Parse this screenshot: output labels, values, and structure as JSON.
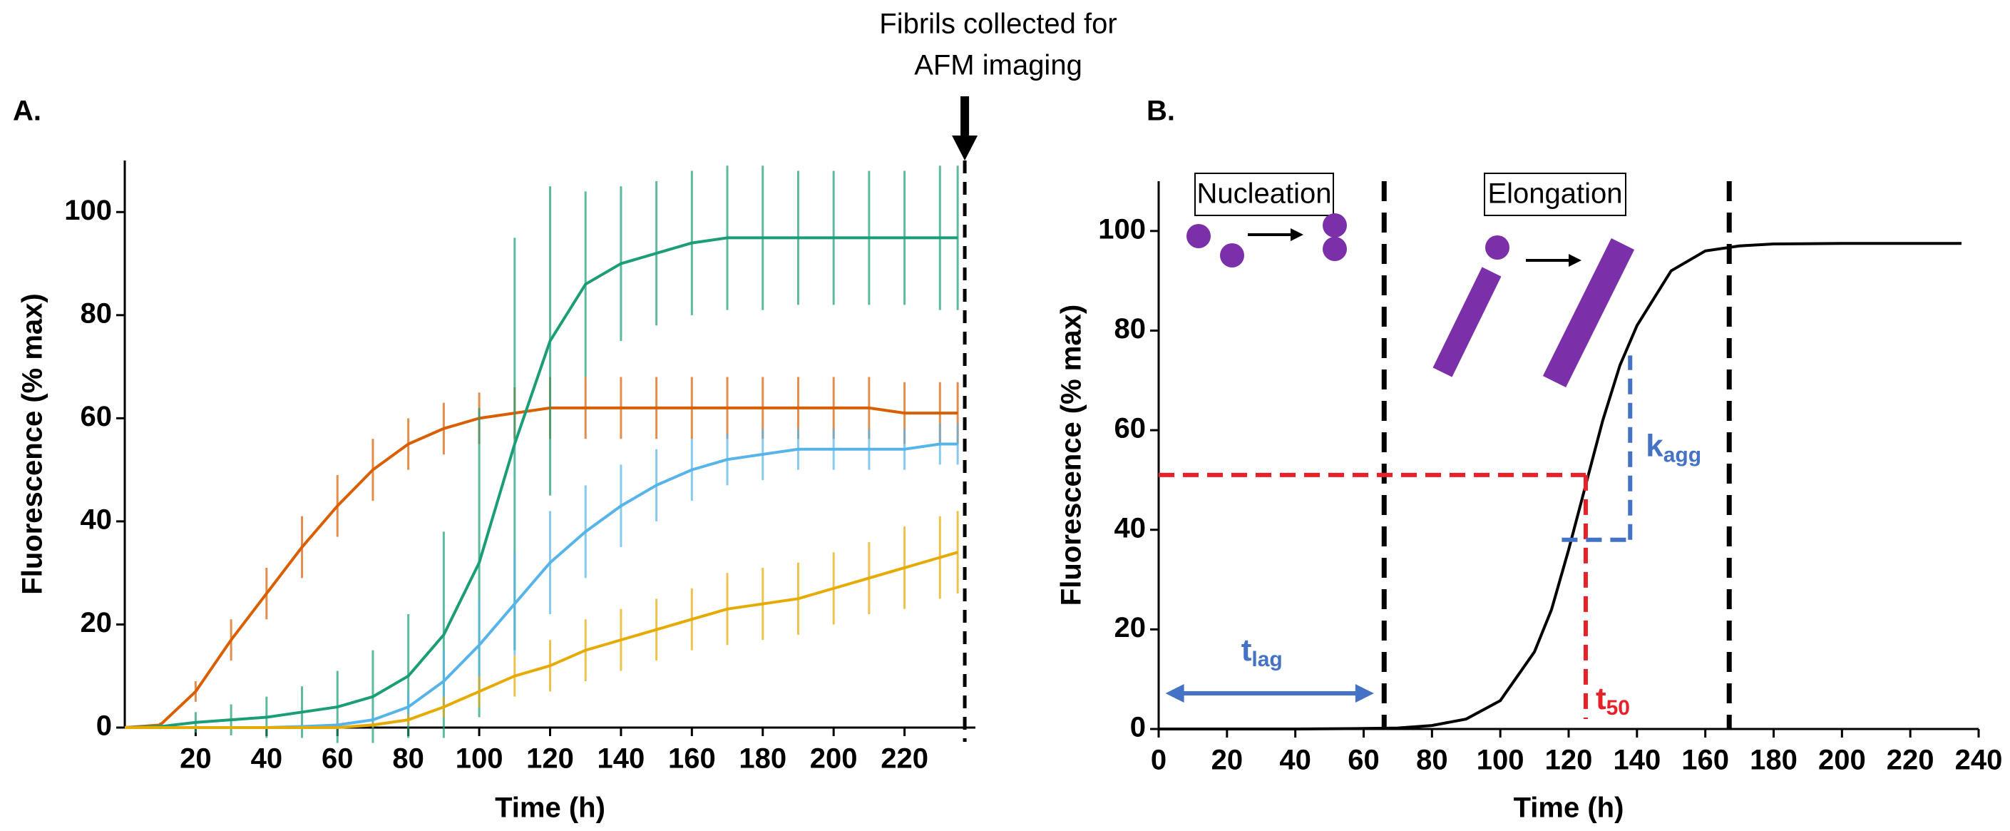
{
  "chart_data": [
    {
      "type": "line",
      "label": "A.",
      "xlabel": "Time (h)",
      "ylabel": "Fluorescence (% max)",
      "annotation": [
        "Fibrils collected for",
        "AFM imaging"
      ],
      "marker_x": 237,
      "xlim": [
        0,
        240
      ],
      "ylim": [
        0,
        110
      ],
      "xticks": [
        20,
        40,
        60,
        80,
        100,
        120,
        140,
        160,
        180,
        200,
        220
      ],
      "yticks": [
        0,
        20,
        40,
        60,
        80,
        100
      ],
      "x": [
        0,
        10,
        20,
        30,
        40,
        50,
        60,
        70,
        80,
        90,
        100,
        110,
        120,
        130,
        140,
        150,
        160,
        170,
        180,
        190,
        200,
        210,
        220,
        230,
        235
      ],
      "series": [
        {
          "color": "#d95f02",
          "values": [
            0,
            0.5,
            7,
            17,
            26,
            35,
            43,
            50,
            55,
            58,
            60,
            61,
            62,
            62,
            62,
            62,
            62,
            62,
            62,
            62,
            62,
            62,
            61,
            61,
            61
          ],
          "errors": [
            0,
            0.5,
            2,
            4,
            5,
            6,
            6,
            6,
            5,
            5,
            5,
            5,
            6,
            6,
            6,
            6,
            6,
            6,
            6,
            6,
            6,
            6,
            6,
            6,
            6
          ]
        },
        {
          "color": "#1b9e77",
          "values": [
            0,
            0.2,
            1,
            1.5,
            2,
            3,
            4,
            6,
            10,
            18,
            32,
            55,
            75,
            86,
            90,
            92,
            94,
            95,
            95,
            95,
            95,
            95,
            95,
            95,
            95
          ],
          "errors": [
            0,
            0.5,
            2,
            3,
            4,
            5,
            7,
            9,
            12,
            20,
            30,
            40,
            30,
            18,
            15,
            14,
            14,
            14,
            14,
            13,
            13,
            13,
            13,
            14,
            14
          ]
        },
        {
          "color": "#56b4e9",
          "values": [
            0,
            0,
            0,
            0,
            0,
            0.2,
            0.5,
            1.5,
            4,
            9,
            16,
            24,
            32,
            38,
            43,
            47,
            50,
            52,
            53,
            54,
            54,
            54,
            54,
            55,
            55
          ],
          "errors": [
            0,
            0,
            0,
            0,
            0,
            0.3,
            0.5,
            1,
            3,
            6,
            9,
            10,
            10,
            9,
            8,
            7,
            6,
            5,
            5,
            4,
            4,
            4,
            4,
            4,
            4
          ]
        },
        {
          "color": "#e6ab02",
          "values": [
            0,
            0,
            0,
            0,
            0,
            0,
            0,
            0.5,
            1.5,
            4,
            7,
            10,
            12,
            15,
            17,
            19,
            21,
            23,
            24,
            25,
            27,
            29,
            31,
            33,
            34
          ],
          "errors": [
            0,
            0,
            0,
            0,
            0,
            0,
            0,
            0.5,
            1,
            2,
            3,
            4,
            5,
            6,
            6,
            6,
            6,
            7,
            7,
            7,
            7,
            7,
            8,
            8,
            8
          ]
        }
      ]
    },
    {
      "type": "line",
      "label": "B.",
      "xlabel": "Time (h)",
      "ylabel": "Fluorescence (% max)",
      "xlim": [
        0,
        240
      ],
      "ylim": [
        0,
        110
      ],
      "xticks": [
        0,
        20,
        40,
        60,
        80,
        100,
        120,
        140,
        160,
        180,
        200,
        220,
        240
      ],
      "yticks": [
        0,
        20,
        40,
        60,
        80,
        100
      ],
      "x": [
        0,
        20,
        40,
        60,
        70,
        80,
        90,
        100,
        110,
        115,
        120,
        125,
        130,
        135,
        140,
        150,
        160,
        170,
        180,
        200,
        235
      ],
      "series": [
        {
          "color": "#000000",
          "values": [
            0,
            0,
            0,
            0.1,
            0.2,
            0.7,
            2,
            5.7,
            15.5,
            24,
            36,
            49,
            62,
            73,
            81,
            92,
            96,
            97,
            97.4,
            97.5,
            97.5
          ]
        }
      ],
      "phase_lines": [
        66,
        167
      ],
      "phases": [
        "Nucleation",
        "Elongation"
      ],
      "t50": {
        "x": 125,
        "y": 51,
        "label": [
          "t",
          "50"
        ]
      },
      "kagg": {
        "x": [
          118,
          138
        ],
        "y": [
          38,
          75
        ],
        "label": [
          "k",
          "agg"
        ]
      },
      "tlag": {
        "x": [
          2,
          63
        ],
        "label": [
          "t",
          "lag"
        ]
      }
    }
  ]
}
